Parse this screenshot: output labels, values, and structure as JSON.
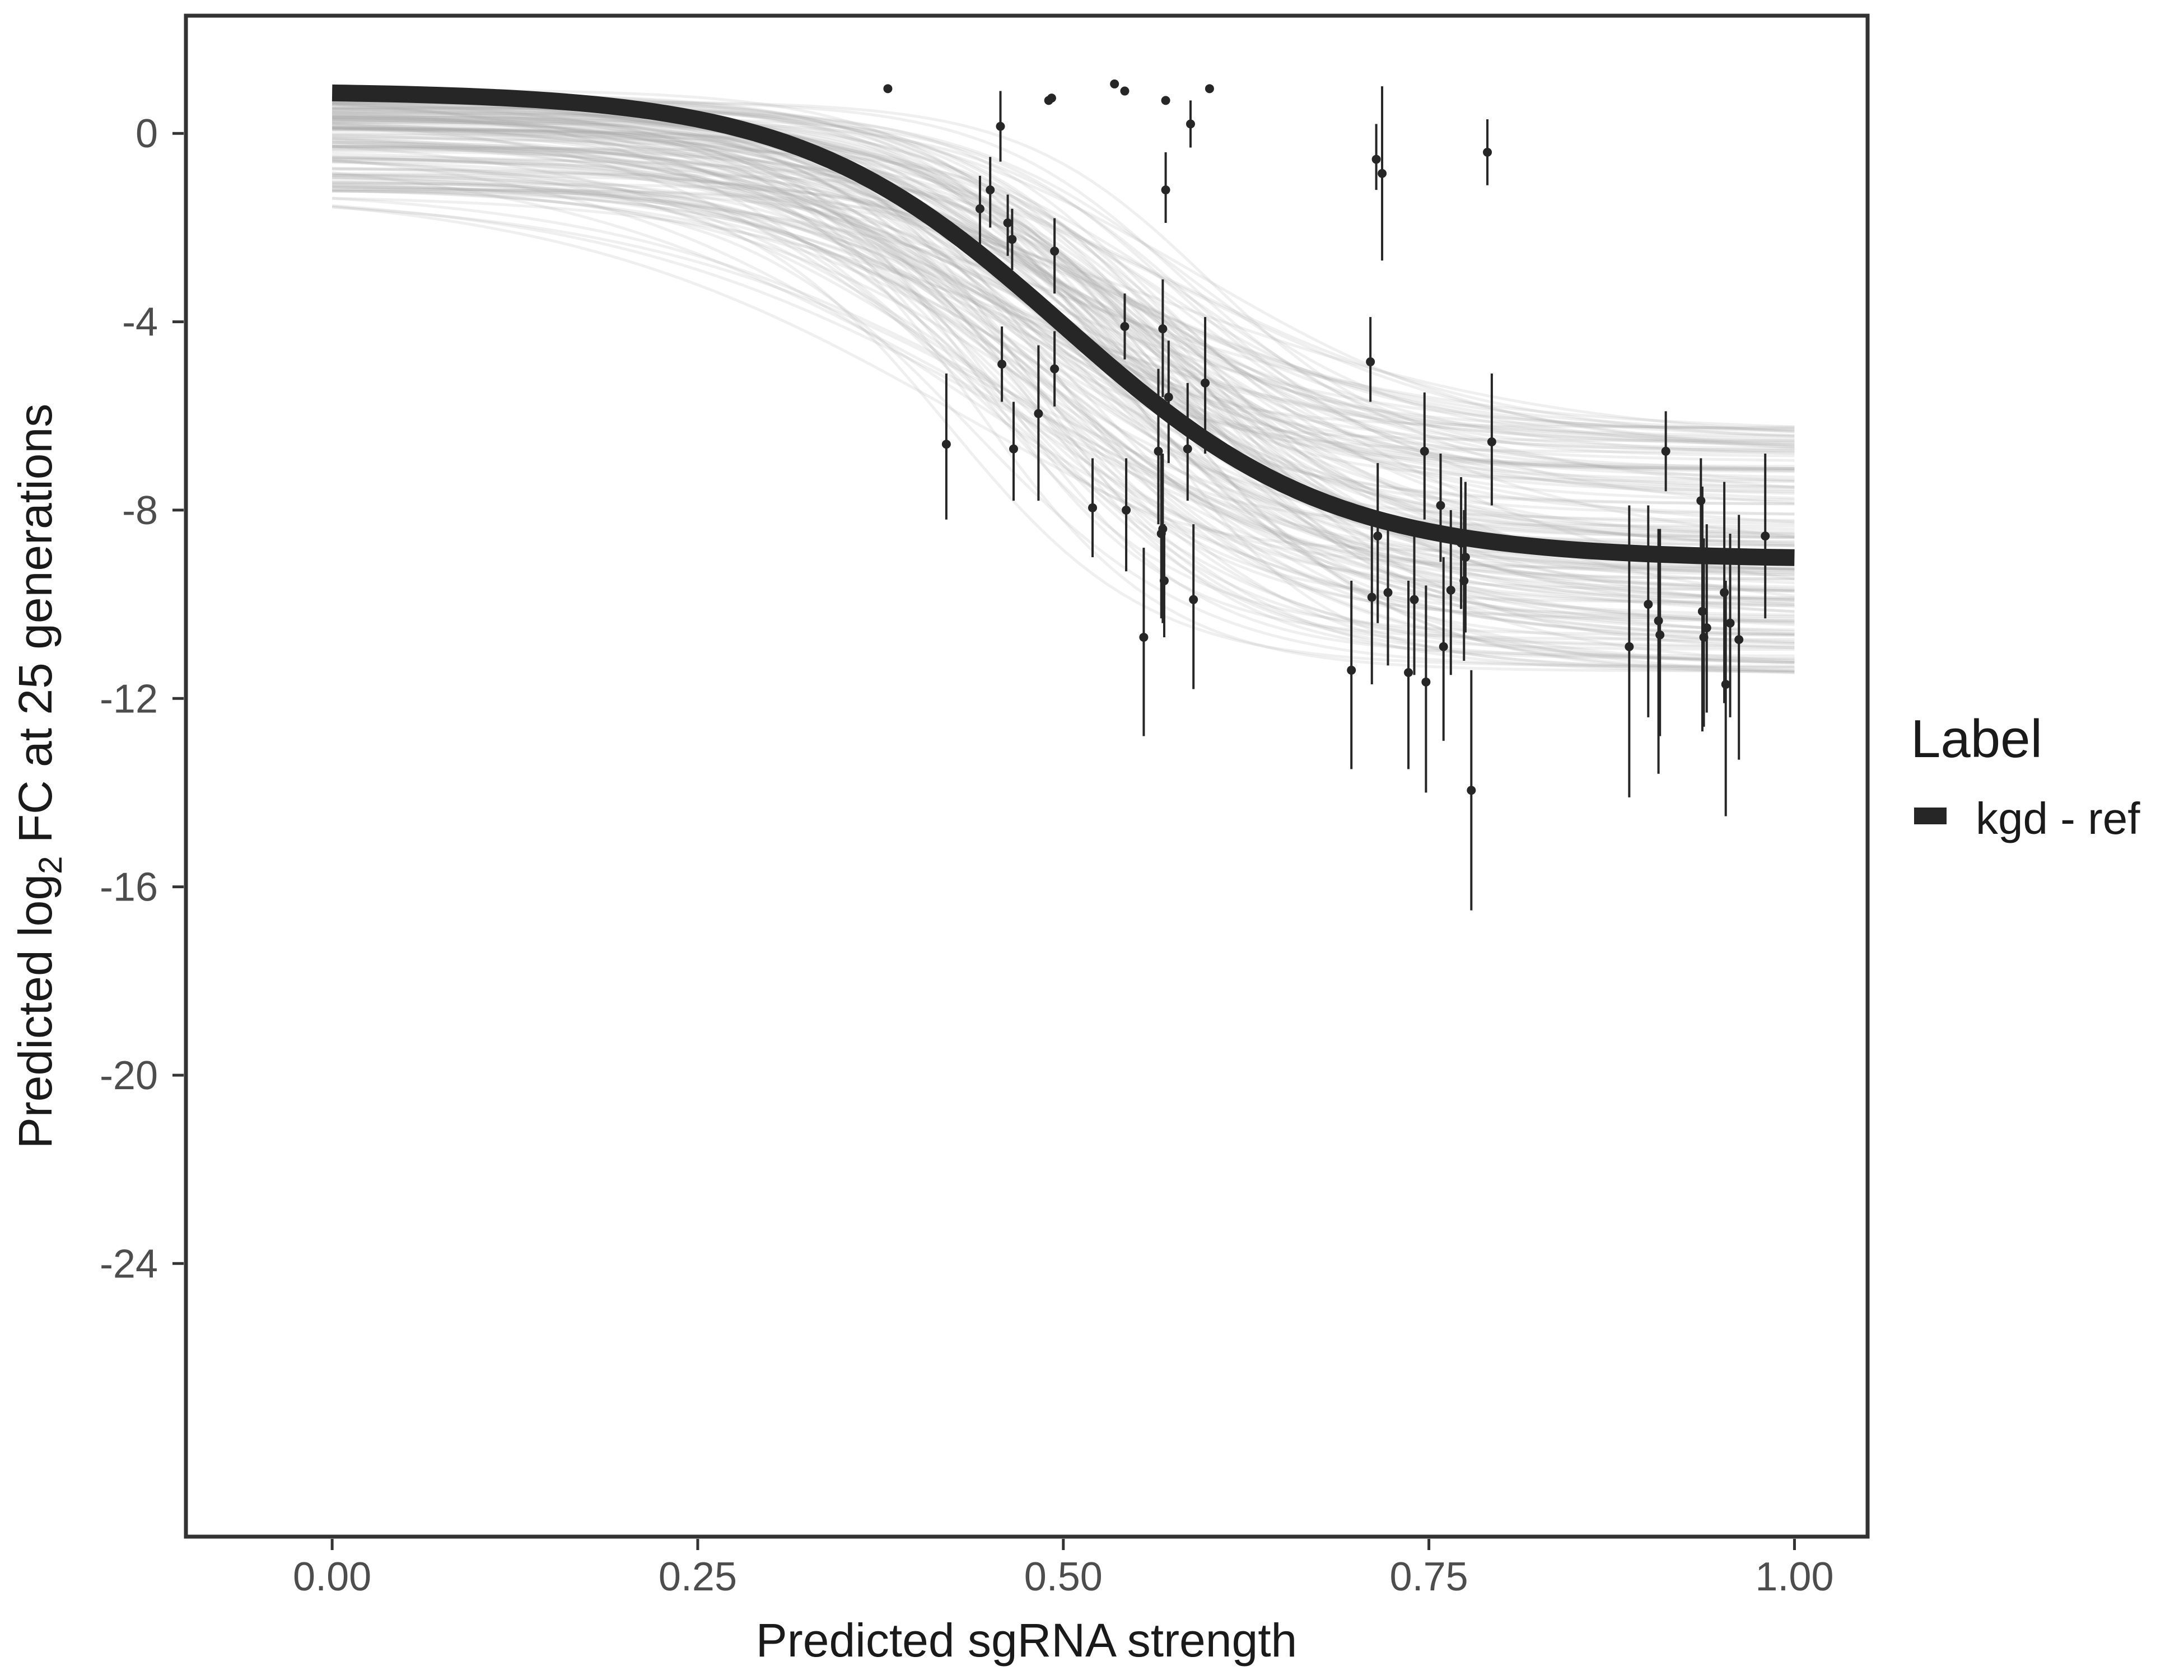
{
  "chart_data": {
    "type": "line",
    "title": "",
    "xlabel": "Predicted sgRNA strength",
    "ylabel": {
      "prefix": "Predicted  log",
      "subscript": "2",
      "suffix": " FC at 25 generations"
    },
    "xlim": [
      -0.1,
      1.05
    ],
    "ylim": [
      -29.8,
      2.5
    ],
    "xticks": [
      0,
      0.25,
      0.5,
      0.75,
      1
    ],
    "xtick_labels": [
      "0.00",
      "0.25",
      "0.50",
      "0.75",
      "1.00"
    ],
    "yticks": [
      0,
      -4,
      -8,
      -12,
      -16,
      -20,
      -24
    ],
    "ytick_labels": [
      "0",
      "-4",
      "-8",
      "-12",
      "-16",
      "-20",
      "-24"
    ],
    "grid": false,
    "legend": {
      "title": "Label",
      "position": "right",
      "entries": [
        {
          "label": "kgd - ref",
          "color": "#262626"
        }
      ]
    },
    "main_curve": {
      "name": "kgd - ref",
      "color": "#262626",
      "model": "logistic",
      "top": 0.9,
      "bottom": -9.05,
      "midpoint": 0.5,
      "steepness": 11
    },
    "posterior_draws": {
      "count": 150,
      "color": "#a6a6a6",
      "top_range": [
        -1.3,
        0.95
      ],
      "bottom_range": [
        -11.6,
        -6.1
      ],
      "midpoint_range": [
        0.42,
        0.6
      ],
      "steepness_range": [
        7,
        16
      ]
    },
    "points": [
      {
        "x": 0.38,
        "y": 0.95,
        "lo": 0.95,
        "hi": 0.95
      },
      {
        "x": 0.42,
        "y": -6.6,
        "lo": -8.2,
        "hi": -5.1
      },
      {
        "x": 0.443,
        "y": -1.6,
        "lo": -2.4,
        "hi": -0.9
      },
      {
        "x": 0.45,
        "y": -1.2,
        "lo": -2.0,
        "hi": -0.5
      },
      {
        "x": 0.457,
        "y": 0.15,
        "lo": -0.6,
        "hi": 0.9
      },
      {
        "x": 0.458,
        "y": -4.9,
        "lo": -5.7,
        "hi": -4.1
      },
      {
        "x": 0.462,
        "y": -1.9,
        "lo": -2.6,
        "hi": -1.3
      },
      {
        "x": 0.465,
        "y": -2.25,
        "lo": -2.9,
        "hi": -1.6
      },
      {
        "x": 0.466,
        "y": -6.7,
        "lo": -7.8,
        "hi": -5.7
      },
      {
        "x": 0.483,
        "y": -5.95,
        "lo": -7.8,
        "hi": -4.5
      },
      {
        "x": 0.49,
        "y": 0.7,
        "lo": 0.7,
        "hi": 0.7
      },
      {
        "x": 0.492,
        "y": 0.75,
        "lo": 0.75,
        "hi": 0.75
      },
      {
        "x": 0.494,
        "y": -2.5,
        "lo": -3.4,
        "hi": -1.8
      },
      {
        "x": 0.494,
        "y": -5.0,
        "lo": -5.8,
        "hi": -4.2
      },
      {
        "x": 0.52,
        "y": -7.95,
        "lo": -9.0,
        "hi": -6.9
      },
      {
        "x": 0.535,
        "y": 1.05,
        "lo": 1.05,
        "hi": 1.05
      },
      {
        "x": 0.542,
        "y": 0.9,
        "lo": 0.9,
        "hi": 0.9
      },
      {
        "x": 0.542,
        "y": -4.1,
        "lo": -4.8,
        "hi": -3.4
      },
      {
        "x": 0.543,
        "y": -8.0,
        "lo": -9.3,
        "hi": -6.9
      },
      {
        "x": 0.555,
        "y": -10.7,
        "lo": -12.8,
        "hi": -8.8
      },
      {
        "x": 0.565,
        "y": -6.75,
        "lo": -8.3,
        "hi": -5.0
      },
      {
        "x": 0.567,
        "y": -8.5,
        "lo": -10.3,
        "hi": -6.8
      },
      {
        "x": 0.568,
        "y": -4.15,
        "lo": -5.6,
        "hi": -3.1
      },
      {
        "x": 0.568,
        "y": -8.4,
        "lo": -10.4,
        "hi": -6.8
      },
      {
        "x": 0.569,
        "y": -9.5,
        "lo": -10.7,
        "hi": -8.3
      },
      {
        "x": 0.57,
        "y": 0.7,
        "lo": 0.7,
        "hi": 0.7
      },
      {
        "x": 0.57,
        "y": -1.2,
        "lo": -1.9,
        "hi": -0.4
      },
      {
        "x": 0.572,
        "y": -5.6,
        "lo": -7.0,
        "hi": -4.4
      },
      {
        "x": 0.585,
        "y": -6.7,
        "lo": -7.8,
        "hi": -5.3
      },
      {
        "x": 0.587,
        "y": 0.2,
        "lo": -0.3,
        "hi": 0.7
      },
      {
        "x": 0.589,
        "y": -9.9,
        "lo": -11.8,
        "hi": -8.3
      },
      {
        "x": 0.597,
        "y": -5.3,
        "lo": -6.8,
        "hi": -3.9
      },
      {
        "x": 0.6,
        "y": 0.95,
        "lo": 0.95,
        "hi": 0.95
      },
      {
        "x": 0.697,
        "y": -11.4,
        "lo": -13.5,
        "hi": -9.5
      },
      {
        "x": 0.71,
        "y": -4.85,
        "lo": -5.7,
        "hi": -3.9
      },
      {
        "x": 0.711,
        "y": -9.85,
        "lo": -11.7,
        "hi": -8.1
      },
      {
        "x": 0.714,
        "y": -0.55,
        "lo": -1.2,
        "hi": 0.2
      },
      {
        "x": 0.715,
        "y": -8.55,
        "lo": -10.4,
        "hi": -7.0
      },
      {
        "x": 0.718,
        "y": -0.85,
        "lo": -2.7,
        "hi": 1.0
      },
      {
        "x": 0.722,
        "y": -9.75,
        "lo": -11.3,
        "hi": -8.2
      },
      {
        "x": 0.736,
        "y": -11.45,
        "lo": -13.5,
        "hi": -9.5
      },
      {
        "x": 0.74,
        "y": -9.9,
        "lo": -11.5,
        "hi": -8.3
      },
      {
        "x": 0.747,
        "y": -6.75,
        "lo": -8.2,
        "hi": -5.5
      },
      {
        "x": 0.748,
        "y": -11.65,
        "lo": -14.0,
        "hi": -9.6
      },
      {
        "x": 0.758,
        "y": -7.9,
        "lo": -9.1,
        "hi": -6.8
      },
      {
        "x": 0.76,
        "y": -10.9,
        "lo": -12.9,
        "hi": -9.0
      },
      {
        "x": 0.765,
        "y": -9.7,
        "lo": -11.5,
        "hi": -8.0
      },
      {
        "x": 0.772,
        "y": -8.7,
        "lo": -10.1,
        "hi": -7.3
      },
      {
        "x": 0.774,
        "y": -9.5,
        "lo": -11.2,
        "hi": -8.0
      },
      {
        "x": 0.775,
        "y": -9.0,
        "lo": -10.6,
        "hi": -7.4
      },
      {
        "x": 0.779,
        "y": -13.95,
        "lo": -16.5,
        "hi": -11.4
      },
      {
        "x": 0.79,
        "y": -0.4,
        "lo": -1.1,
        "hi": 0.3
      },
      {
        "x": 0.793,
        "y": -6.55,
        "lo": -7.9,
        "hi": -5.1
      },
      {
        "x": 0.887,
        "y": -10.9,
        "lo": -14.1,
        "hi": -7.9
      },
      {
        "x": 0.9,
        "y": -10.0,
        "lo": -12.4,
        "hi": -7.9
      },
      {
        "x": 0.907,
        "y": -10.35,
        "lo": -13.6,
        "hi": -8.4
      },
      {
        "x": 0.908,
        "y": -10.65,
        "lo": -12.8,
        "hi": -8.4
      },
      {
        "x": 0.912,
        "y": -6.75,
        "lo": -7.6,
        "hi": -5.9
      },
      {
        "x": 0.936,
        "y": -7.8,
        "lo": -8.9,
        "hi": -6.9
      },
      {
        "x": 0.937,
        "y": -10.15,
        "lo": -12.7,
        "hi": -7.5
      },
      {
        "x": 0.938,
        "y": -10.7,
        "lo": -12.6,
        "hi": -8.6
      },
      {
        "x": 0.94,
        "y": -10.5,
        "lo": -12.3,
        "hi": -8.3
      },
      {
        "x": 0.952,
        "y": -9.75,
        "lo": -12.1,
        "hi": -7.4
      },
      {
        "x": 0.953,
        "y": -11.7,
        "lo": -14.5,
        "hi": -9.5
      },
      {
        "x": 0.956,
        "y": -10.4,
        "lo": -12.4,
        "hi": -8.5
      },
      {
        "x": 0.962,
        "y": -10.75,
        "lo": -13.3,
        "hi": -8.1
      },
      {
        "x": 0.98,
        "y": -8.55,
        "lo": -10.3,
        "hi": -6.8
      }
    ]
  }
}
